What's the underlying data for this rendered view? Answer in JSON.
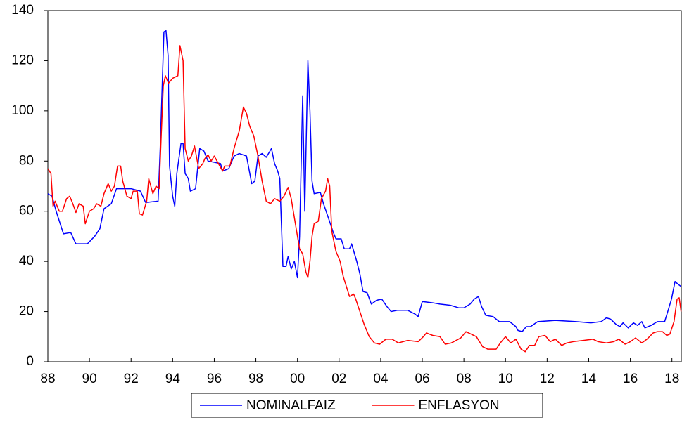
{
  "chart_data": {
    "type": "line",
    "xlim": [
      1988,
      2018.45
    ],
    "xticks": [
      {
        "value": 1988,
        "label": "88"
      },
      {
        "value": 1990,
        "label": "90"
      },
      {
        "value": 1992,
        "label": "92"
      },
      {
        "value": 1994,
        "label": "94"
      },
      {
        "value": 1996,
        "label": "96"
      },
      {
        "value": 1998,
        "label": "98"
      },
      {
        "value": 2000,
        "label": "00"
      },
      {
        "value": 2002,
        "label": "02"
      },
      {
        "value": 2004,
        "label": "04"
      },
      {
        "value": 2006,
        "label": "06"
      },
      {
        "value": 2008,
        "label": "08"
      },
      {
        "value": 2010,
        "label": "10"
      },
      {
        "value": 2012,
        "label": "12"
      },
      {
        "value": 2014,
        "label": "14"
      },
      {
        "value": 2016,
        "label": "16"
      },
      {
        "value": 2018,
        "label": "18"
      }
    ],
    "ylim": [
      0,
      140
    ],
    "yticks": [
      0,
      20,
      40,
      60,
      80,
      100,
      120,
      140
    ],
    "legend": "bottom",
    "series": [
      {
        "name": "NOMINALFAIZ",
        "color": "#0000ff",
        "x": [
          1988.0,
          1988.2,
          1988.4,
          1988.75,
          1989.1,
          1989.35,
          1989.9,
          1990.25,
          1990.5,
          1990.7,
          1991.05,
          1991.3,
          1992.0,
          1992.45,
          1992.7,
          1993.3,
          1993.4,
          1993.58,
          1993.68,
          1993.78,
          1993.85,
          1994.0,
          1994.1,
          1994.2,
          1994.4,
          1994.5,
          1994.6,
          1994.75,
          1994.85,
          1995.1,
          1995.3,
          1995.5,
          1995.7,
          1996.0,
          1996.3,
          1996.4,
          1996.7,
          1996.95,
          1997.2,
          1997.55,
          1997.8,
          1997.95,
          1998.1,
          1998.3,
          1998.5,
          1998.75,
          1998.9,
          1999.05,
          1999.15,
          1999.3,
          1999.45,
          1999.55,
          1999.7,
          1999.85,
          2000.0,
          2000.1,
          2000.25,
          2000.35,
          2000.5,
          2000.6,
          2000.7,
          2000.8,
          2001.1,
          2001.25,
          2001.5,
          2001.7,
          2001.85,
          2002.1,
          2002.25,
          2002.5,
          2002.6,
          2002.85,
          2003.0,
          2003.15,
          2003.35,
          2003.55,
          2003.8,
          2004.05,
          2004.3,
          2004.5,
          2004.8,
          2005.3,
          2005.65,
          2005.8,
          2006.0,
          2006.5,
          2006.85,
          2007.35,
          2007.75,
          2008.0,
          2008.3,
          2008.5,
          2008.7,
          2008.85,
          2009.05,
          2009.4,
          2009.7,
          2010.2,
          2010.5,
          2010.6,
          2010.8,
          2011.0,
          2011.2,
          2011.55,
          2012.4,
          2013.4,
          2014.1,
          2014.6,
          2014.85,
          2015.05,
          2015.3,
          2015.5,
          2015.65,
          2015.9,
          2016.15,
          2016.35,
          2016.55,
          2016.7,
          2017.0,
          2017.3,
          2017.65,
          2017.8,
          2017.98,
          2018.15,
          2018.28,
          2018.44
        ],
        "values": [
          67,
          66,
          60,
          51,
          51.5,
          47,
          47,
          50,
          53,
          61,
          63,
          69,
          69,
          68,
          63.5,
          64,
          85,
          131.5,
          132,
          122,
          78,
          66,
          62,
          75,
          87,
          87,
          75,
          73,
          68,
          69,
          85,
          84,
          80,
          79.5,
          79,
          76,
          77,
          82,
          83,
          82,
          71,
          72,
          82,
          83,
          81.5,
          85,
          79,
          76,
          73,
          38,
          38,
          42,
          37,
          40,
          33.5,
          50,
          106,
          60,
          120,
          100,
          72,
          67,
          67.5,
          63,
          57,
          52,
          49,
          49,
          45,
          45,
          47,
          40,
          35,
          28,
          27.5,
          23,
          24.5,
          25,
          22,
          20,
          20.5,
          20.5,
          19,
          18,
          24,
          23.5,
          23,
          22.5,
          21.5,
          21.5,
          23,
          25,
          26,
          22,
          18.5,
          18,
          16,
          16,
          14,
          12.5,
          12,
          14,
          14,
          16,
          16.5,
          16,
          15.5,
          16,
          17.5,
          17,
          15,
          14,
          15.5,
          13.5,
          15.5,
          14.5,
          16,
          13.5,
          14.5,
          16,
          16,
          20,
          25,
          32,
          31,
          30
        ]
      },
      {
        "name": "ENFLASYON",
        "color": "#ff0000",
        "x": [
          1988.0,
          1988.15,
          1988.25,
          1988.35,
          1988.55,
          1988.7,
          1988.9,
          1989.05,
          1989.2,
          1989.35,
          1989.5,
          1989.7,
          1989.8,
          1990.0,
          1990.2,
          1990.35,
          1990.55,
          1990.7,
          1990.9,
          1991.05,
          1991.2,
          1991.35,
          1991.5,
          1991.6,
          1991.8,
          1992.0,
          1992.1,
          1992.3,
          1992.4,
          1992.55,
          1992.75,
          1992.85,
          1993.05,
          1993.2,
          1993.35,
          1993.45,
          1993.55,
          1993.65,
          1993.8,
          1994.0,
          1994.25,
          1994.35,
          1994.5,
          1994.6,
          1994.75,
          1994.9,
          1995.05,
          1995.25,
          1995.45,
          1995.55,
          1995.7,
          1995.85,
          1996.0,
          1996.2,
          1996.4,
          1996.5,
          1996.75,
          1996.95,
          1997.2,
          1997.4,
          1997.55,
          1997.7,
          1997.9,
          1998.1,
          1998.3,
          1998.5,
          1998.7,
          1998.9,
          1999.15,
          1999.35,
          1999.55,
          1999.7,
          1999.9,
          2000.1,
          2000.25,
          2000.4,
          2000.5,
          2000.6,
          2000.7,
          2000.8,
          2001.0,
          2001.15,
          2001.35,
          2001.45,
          2001.55,
          2001.65,
          2001.85,
          2002.05,
          2002.2,
          2002.35,
          2002.5,
          2002.7,
          2002.8,
          2003.0,
          2003.2,
          2003.45,
          2003.7,
          2003.95,
          2004.25,
          2004.55,
          2004.85,
          2005.3,
          2005.8,
          2006.05,
          2006.2,
          2006.5,
          2006.85,
          2007.1,
          2007.4,
          2007.85,
          2008.1,
          2008.35,
          2008.6,
          2008.9,
          2009.15,
          2009.55,
          2009.75,
          2010.0,
          2010.25,
          2010.5,
          2010.75,
          2010.95,
          2011.15,
          2011.4,
          2011.6,
          2011.9,
          2012.15,
          2012.4,
          2012.7,
          2012.95,
          2013.25,
          2013.75,
          2014.2,
          2014.45,
          2014.85,
          2015.2,
          2015.45,
          2015.75,
          2016.0,
          2016.25,
          2016.55,
          2016.8,
          2017.1,
          2017.3,
          2017.55,
          2017.75,
          2017.9,
          2018.1,
          2018.25,
          2018.35,
          2018.44
        ],
        "values": [
          77,
          75,
          62,
          64,
          60,
          60,
          65,
          66,
          63,
          59.5,
          63,
          62,
          55,
          60,
          61,
          63,
          62,
          67,
          71,
          68,
          70,
          78,
          78,
          72,
          66,
          65,
          68,
          68,
          59,
          58.5,
          64,
          73,
          67,
          70,
          69,
          90,
          110,
          114,
          111,
          113,
          114,
          126,
          120,
          85,
          80,
          82,
          86,
          77,
          79,
          81,
          82.5,
          80,
          82,
          79,
          76,
          78,
          78,
          85,
          92,
          101.5,
          99,
          94,
          90,
          82,
          72,
          64,
          63,
          65,
          64,
          66,
          69.5,
          65,
          55,
          45,
          43,
          36,
          33.5,
          40,
          50,
          55,
          56,
          65,
          68,
          73,
          70,
          52,
          44,
          40,
          34,
          30,
          26,
          27,
          25,
          20,
          15,
          10,
          7.5,
          7,
          9,
          9,
          7.5,
          8.5,
          8,
          10,
          11.5,
          10.5,
          10,
          7,
          7.5,
          9.5,
          12,
          11,
          10,
          6,
          5,
          5,
          7.5,
          10,
          7.5,
          9,
          5,
          4,
          6.5,
          6.5,
          10,
          10.5,
          8,
          9,
          6.5,
          7.5,
          8,
          8.5,
          9,
          8,
          7.5,
          8,
          9,
          7,
          8,
          9.5,
          7.5,
          9,
          11.5,
          12,
          12,
          10.5,
          11,
          16,
          25,
          25.5,
          20
        ]
      }
    ]
  }
}
